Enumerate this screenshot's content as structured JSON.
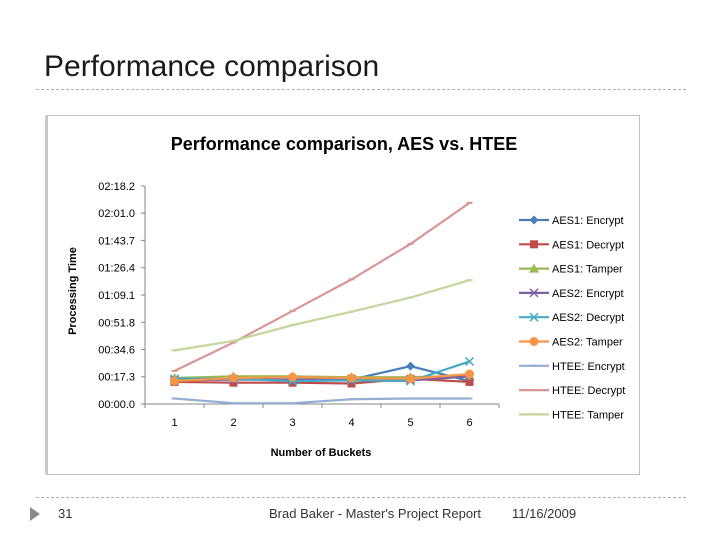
{
  "slide": {
    "title": "Performance comparison",
    "page_number": "31",
    "footer_text": "Brad Baker - Master's Project Report",
    "footer_date": "11/16/2009"
  },
  "chart_data": {
    "type": "line",
    "title": "Performance comparison, AES vs. HTEE",
    "xlabel": "Number of Buckets",
    "ylabel": "Processing Time",
    "categories": [
      "1",
      "2",
      "3",
      "4",
      "5",
      "6"
    ],
    "y_ticks": [
      "00:00.0",
      "00:17.3",
      "00:34.6",
      "00:51.8",
      "01:09.1",
      "01:26.4",
      "01:43.7",
      "02:01.0",
      "02:18.2"
    ],
    "y_tick_seconds": [
      0,
      17.3,
      34.6,
      51.8,
      69.1,
      86.4,
      103.7,
      121.0,
      138.2
    ],
    "ylim": [
      0,
      138.2
    ],
    "grid": false,
    "legend_position": "right",
    "series": [
      {
        "name": "AES1: Encrypt",
        "color": "#4a7ebb",
        "marker": "diamond",
        "values": [
          15.5,
          15.5,
          15.5,
          15.5,
          24.0,
          14.5
        ]
      },
      {
        "name": "AES1: Decrypt",
        "color": "#be4b48",
        "marker": "square",
        "values": [
          14.0,
          13.5,
          13.5,
          13.0,
          16.0,
          14.0
        ]
      },
      {
        "name": "AES1: Tamper",
        "color": "#98b954",
        "marker": "triangle",
        "values": [
          16.5,
          17.5,
          17.5,
          17.0,
          17.0,
          18.0
        ]
      },
      {
        "name": "AES2: Encrypt",
        "color": "#7d60a0",
        "marker": "x",
        "values": [
          15.0,
          15.5,
          15.5,
          16.0,
          15.0,
          17.5
        ]
      },
      {
        "name": "AES2: Decrypt",
        "color": "#46aac5",
        "marker": "x",
        "values": [
          16.0,
          16.0,
          14.5,
          15.0,
          14.5,
          27.0
        ]
      },
      {
        "name": "AES2: Tamper",
        "color": "#f79646",
        "marker": "circle",
        "values": [
          14.5,
          16.5,
          17.0,
          16.5,
          16.0,
          19.0
        ]
      },
      {
        "name": "HTEE: Encrypt",
        "color": "#94aed3",
        "marker": "dash",
        "values": [
          3.5,
          0.5,
          0.5,
          3.0,
          3.5,
          3.5
        ]
      },
      {
        "name": "HTEE: Decrypt",
        "color": "#d99694",
        "marker": "dash",
        "values": [
          21.0,
          39.0,
          59.0,
          79.0,
          101.5,
          127.5
        ]
      },
      {
        "name": "HTEE: Tamper",
        "color": "#c3d69b",
        "marker": "dash",
        "values": [
          34.0,
          40.0,
          50.0,
          58.5,
          67.5,
          78.5
        ]
      }
    ]
  }
}
